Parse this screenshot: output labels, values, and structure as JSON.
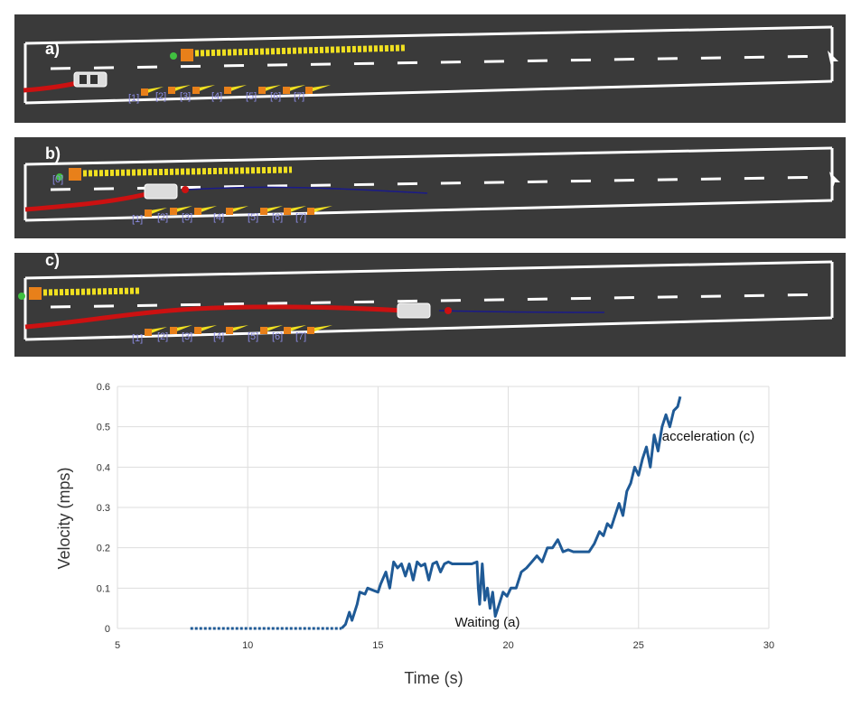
{
  "panels": [
    {
      "label": "a)",
      "obstacle_tag": "",
      "obstacle_labels": [
        "[1]",
        "[2]",
        "[3]",
        "[4]",
        "[5]",
        "[6]",
        "[7]"
      ]
    },
    {
      "label": "b)",
      "obstacle_tag": "[0]",
      "obstacle_labels": [
        "[1]",
        "[2]",
        "[3]",
        "[4]",
        "[5]",
        "[6]",
        "[7]"
      ]
    },
    {
      "label": "c)",
      "obstacle_tag": "",
      "obstacle_labels": [
        "[1]",
        "[2]",
        "[3]",
        "[4]",
        "[5]",
        "[6]",
        "[7]"
      ]
    }
  ],
  "colors": {
    "road": "#3a3a3a",
    "lane": "#ffffff",
    "trail": "#cc1111",
    "plan": "#1a1a8a",
    "yellow": "#f0e020",
    "orange": "#e8801a",
    "series": "#1f5a96",
    "grid": "#dddddd"
  },
  "chart_data": {
    "type": "line",
    "xlabel": "Time (s)",
    "ylabel": "Velocity (mps)",
    "xlim": [
      5,
      30
    ],
    "ylim": [
      0,
      0.6
    ],
    "xticks": [
      "5",
      "10",
      "15",
      "20",
      "25",
      "30"
    ],
    "yticks": [
      "0",
      "0.1",
      "0.2",
      "0.3",
      "0.4",
      "0.5",
      "0.6"
    ],
    "grid": true,
    "annotations": [
      {
        "text": "Waiting (a)",
        "x": 19.2,
        "y": 0.0
      },
      {
        "text": "acceleration (c)",
        "x": 25.9,
        "y": 0.47
      }
    ],
    "series": [
      {
        "name": "",
        "x": [
          7.8,
          13.6,
          13.75,
          13.9,
          14.0,
          14.2,
          14.3,
          14.5,
          14.6,
          14.8,
          15.0,
          15.1,
          15.3,
          15.45,
          15.6,
          15.75,
          15.9,
          16.05,
          16.2,
          16.35,
          16.5,
          16.65,
          16.8,
          16.95,
          17.1,
          17.25,
          17.4,
          17.55,
          17.7,
          17.85,
          18.0,
          18.2,
          18.4,
          18.6,
          18.8,
          18.85,
          18.9,
          19.0,
          19.1,
          19.2,
          19.3,
          19.4,
          19.5,
          19.65,
          19.8,
          19.95,
          20.1,
          20.3,
          20.5,
          20.7,
          20.9,
          21.1,
          21.3,
          21.5,
          21.7,
          21.9,
          22.1,
          22.3,
          22.5,
          22.7,
          22.9,
          23.1,
          23.3,
          23.5,
          23.65,
          23.8,
          23.95,
          24.1,
          24.25,
          24.4,
          24.55,
          24.7,
          24.85,
          25.0,
          25.15,
          25.3,
          25.45,
          25.6,
          25.75,
          25.9,
          26.05,
          26.2,
          26.35,
          26.5,
          26.6
        ],
        "y": [
          0.0,
          0.0,
          0.01,
          0.04,
          0.02,
          0.06,
          0.09,
          0.085,
          0.1,
          0.095,
          0.09,
          0.11,
          0.14,
          0.1,
          0.165,
          0.15,
          0.16,
          0.13,
          0.16,
          0.12,
          0.165,
          0.155,
          0.16,
          0.12,
          0.16,
          0.165,
          0.14,
          0.16,
          0.165,
          0.16,
          0.16,
          0.16,
          0.16,
          0.16,
          0.165,
          0.1,
          0.06,
          0.16,
          0.07,
          0.1,
          0.05,
          0.09,
          0.03,
          0.06,
          0.09,
          0.08,
          0.1,
          0.1,
          0.14,
          0.15,
          0.165,
          0.18,
          0.165,
          0.2,
          0.2,
          0.22,
          0.19,
          0.195,
          0.19,
          0.19,
          0.19,
          0.19,
          0.21,
          0.24,
          0.23,
          0.26,
          0.25,
          0.28,
          0.31,
          0.28,
          0.34,
          0.36,
          0.4,
          0.38,
          0.42,
          0.45,
          0.4,
          0.48,
          0.44,
          0.5,
          0.53,
          0.5,
          0.54,
          0.55,
          0.575
        ]
      }
    ]
  }
}
